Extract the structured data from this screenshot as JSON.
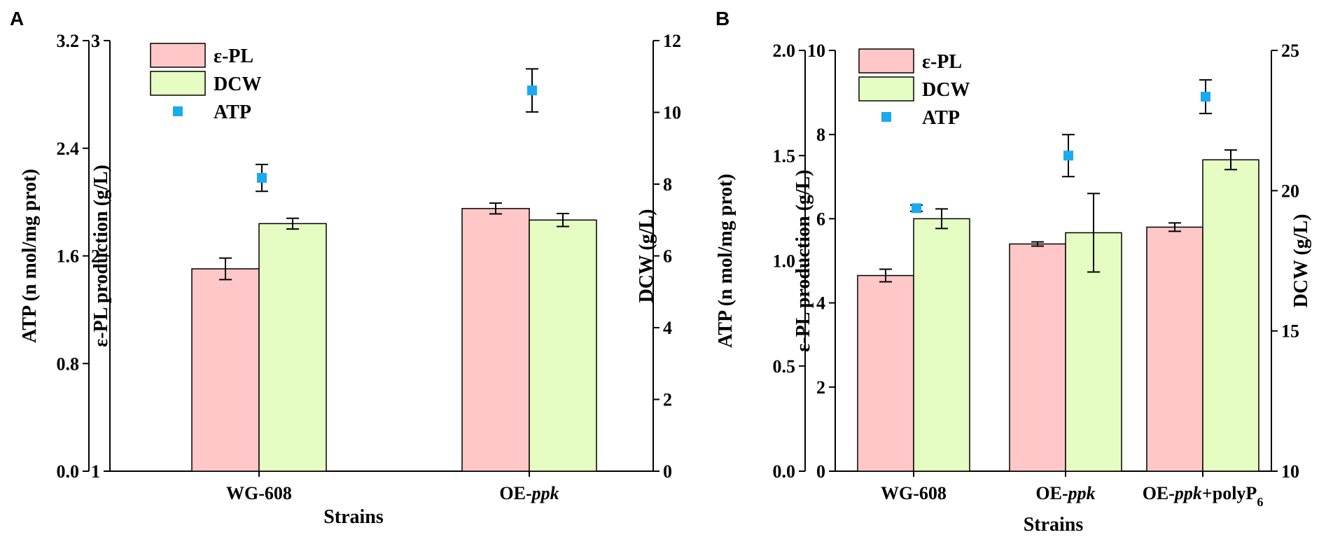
{
  "chart_data": [
    {
      "panel": "A",
      "type": "bar",
      "categories": [
        "WG-608",
        "OE-ppk"
      ],
      "category_parts": [
        [
          {
            "t": "WG-608",
            "i": false
          }
        ],
        [
          {
            "t": "OE-",
            "i": false
          },
          {
            "t": "ppk",
            "i": true
          }
        ]
      ],
      "xlabel": "Strains",
      "series": [
        {
          "name": "ε-PL",
          "kind": "bar",
          "axis": "pl",
          "color": "#FFC7C7",
          "values": [
            1.94,
            2.22
          ],
          "errors": [
            0.05,
            0.025
          ]
        },
        {
          "name": "DCW",
          "kind": "bar",
          "axis": "dcw",
          "color": "#E5FCC2",
          "values": [
            6.9,
            7.0
          ],
          "errors": [
            0.15,
            0.18
          ]
        },
        {
          "name": "ATP",
          "kind": "point",
          "axis": "atp",
          "color": "#1AAAF0",
          "values": [
            2.18,
            2.83
          ],
          "errors": [
            0.1,
            0.16
          ]
        }
      ],
      "axes": {
        "atp": {
          "label": "ATP (n mol/mg prot)",
          "ylim": [
            0,
            3.2
          ],
          "ticks": [
            "0.0",
            "0.8",
            "1.6",
            "2.4",
            "3.2"
          ]
        },
        "pl": {
          "label": "ε-PL production (g/L)",
          "ylim": [
            1,
            3
          ],
          "ticks": [
            "1",
            "2",
            "3"
          ]
        },
        "dcw": {
          "label": "DCW (g/L)",
          "ylim": [
            0,
            12
          ],
          "ticks": [
            "0",
            "2",
            "4",
            "6",
            "8",
            "10",
            "12"
          ]
        }
      },
      "legend": [
        "ε-PL",
        "DCW",
        "ATP"
      ],
      "legend_position": "top-left"
    },
    {
      "panel": "B",
      "type": "bar",
      "categories": [
        "WG-608",
        "OE-ppk",
        "OE-ppk+polyP6"
      ],
      "category_parts": [
        [
          {
            "t": "WG-608",
            "i": false
          }
        ],
        [
          {
            "t": "OE-",
            "i": false
          },
          {
            "t": "ppk",
            "i": true
          }
        ],
        [
          {
            "t": "OE-",
            "i": false
          },
          {
            "t": "ppk",
            "i": true
          },
          {
            "t": "+polyP",
            "i": false
          },
          {
            "t": "6",
            "i": false,
            "sub": true
          }
        ]
      ],
      "xlabel": "Strains",
      "series": [
        {
          "name": "ε-PL",
          "kind": "bar",
          "axis": "pl",
          "color": "#FFC7C7",
          "values": [
            4.65,
            5.4,
            5.8
          ],
          "errors": [
            0.15,
            0.05,
            0.1
          ]
        },
        {
          "name": "DCW",
          "kind": "bar",
          "axis": "dcw",
          "color": "#E5FCC2",
          "values": [
            19.0,
            18.5,
            21.1
          ],
          "errors": [
            0.35,
            1.4,
            0.35
          ]
        },
        {
          "name": "ATP",
          "kind": "point",
          "axis": "atp",
          "color": "#1AAAF0",
          "values": [
            1.25,
            1.5,
            1.78
          ],
          "errors": [
            0.015,
            0.1,
            0.08
          ]
        }
      ],
      "axes": {
        "atp": {
          "label": "ATP (n mol/mg prot)",
          "ylim": [
            0,
            2
          ],
          "ticks": [
            "0.0",
            "0.5",
            "1.0",
            "1.5",
            "2.0"
          ]
        },
        "pl": {
          "label": "ε-PL production (g/L)",
          "ylim": [
            0,
            10
          ],
          "ticks": [
            "0",
            "2",
            "4",
            "6",
            "8",
            "10"
          ]
        },
        "dcw": {
          "label": "DCW (g/L)",
          "ylim": [
            10,
            25
          ],
          "ticks": [
            "10",
            "15",
            "20",
            "25"
          ]
        }
      },
      "legend": [
        "ε-PL",
        "DCW",
        "ATP"
      ],
      "legend_position": "top-left"
    }
  ]
}
